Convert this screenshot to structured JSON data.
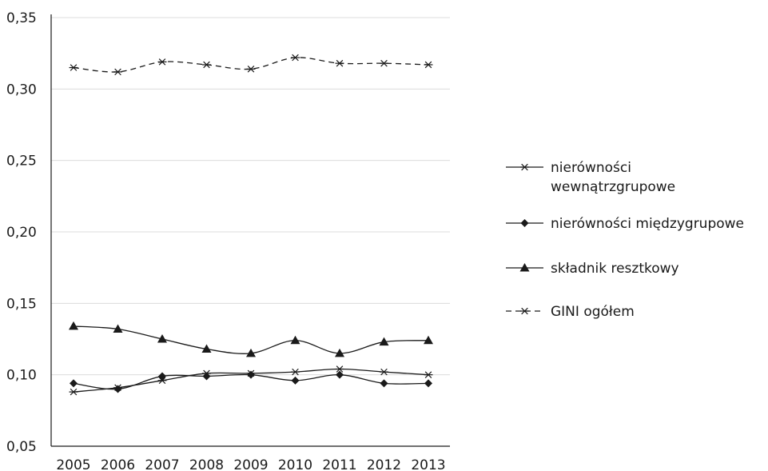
{
  "chart_data": {
    "type": "line",
    "title": "",
    "xlabel": "",
    "ylabel": "",
    "categories": [
      "2005",
      "2006",
      "2007",
      "2008",
      "2009",
      "2010",
      "2011",
      "2012",
      "2013"
    ],
    "ylim": [
      0.05,
      0.35
    ],
    "yticks": [
      0.05,
      0.1,
      0.15,
      0.2,
      0.25,
      0.3,
      0.35
    ],
    "ytick_labels": [
      "0,05",
      "0,10",
      "0,15",
      "0,20",
      "0,25",
      "0,30",
      "0,35"
    ],
    "grid": true,
    "legend_position": "right",
    "series": [
      {
        "name": "nierówności wewnątrzgrupowe",
        "name_lines": [
          "nierówności",
          "wewnątrzgrupowe"
        ],
        "marker": "asterisk",
        "dash": "solid",
        "values": [
          0.088,
          0.091,
          0.096,
          0.101,
          0.101,
          0.102,
          0.104,
          0.102,
          0.1
        ]
      },
      {
        "name": "nierówności międzygrupowe",
        "name_lines": [
          "nierówności międzygrupowe"
        ],
        "marker": "diamond",
        "dash": "solid",
        "values": [
          0.094,
          0.09,
          0.099,
          0.099,
          0.1,
          0.096,
          0.1,
          0.094,
          0.094
        ]
      },
      {
        "name": "składnik resztkowy",
        "name_lines": [
          "składnik resztkowy"
        ],
        "marker": "triangle",
        "dash": "solid",
        "values": [
          0.134,
          0.132,
          0.125,
          0.118,
          0.115,
          0.124,
          0.115,
          0.123,
          0.124
        ]
      },
      {
        "name": "GINI ogółem",
        "name_lines": [
          "GINI ogółem"
        ],
        "marker": "asterisk",
        "dash": "dashed",
        "values": [
          0.315,
          0.312,
          0.319,
          0.317,
          0.314,
          0.322,
          0.318,
          0.318,
          0.317
        ]
      }
    ],
    "colors": {
      "line": "#1a1a1a",
      "grid": "#dcdcdc"
    }
  }
}
